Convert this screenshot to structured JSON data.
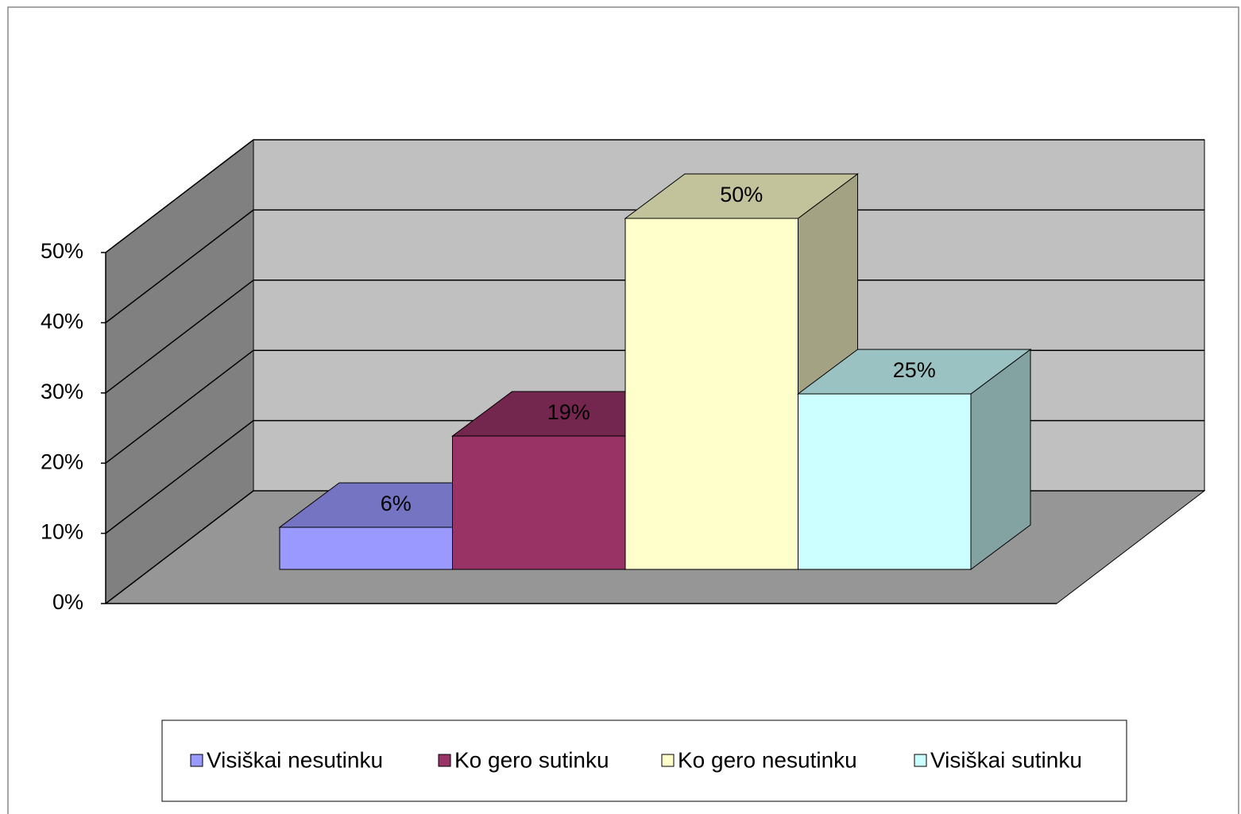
{
  "chart_data": {
    "type": "bar3d",
    "series": [
      {
        "name": "Visiškai nesutinku",
        "color": "#9999ff",
        "values": [
          6
        ],
        "value_labels": [
          "6%"
        ]
      },
      {
        "name": "Ko gero sutinku",
        "color": "#993366",
        "values": [
          19
        ],
        "value_labels": [
          "19%"
        ]
      },
      {
        "name": "Ko gero nesutinku",
        "color": "#ffffcc",
        "values": [
          50
        ],
        "value_labels": [
          "50%"
        ]
      },
      {
        "name": "Visiškai sutinku",
        "color": "#ccffff",
        "values": [
          25
        ],
        "value_labels": [
          "25%"
        ]
      }
    ],
    "ylim": [
      0,
      50
    ],
    "yticks": [
      {
        "value": 0,
        "label": "0%"
      },
      {
        "value": 10,
        "label": "10%"
      },
      {
        "value": 20,
        "label": "20%"
      },
      {
        "value": 30,
        "label": "30%"
      },
      {
        "value": 40,
        "label": "40%"
      },
      {
        "value": 50,
        "label": "50%"
      }
    ],
    "grid": true,
    "legend": "bottom"
  }
}
